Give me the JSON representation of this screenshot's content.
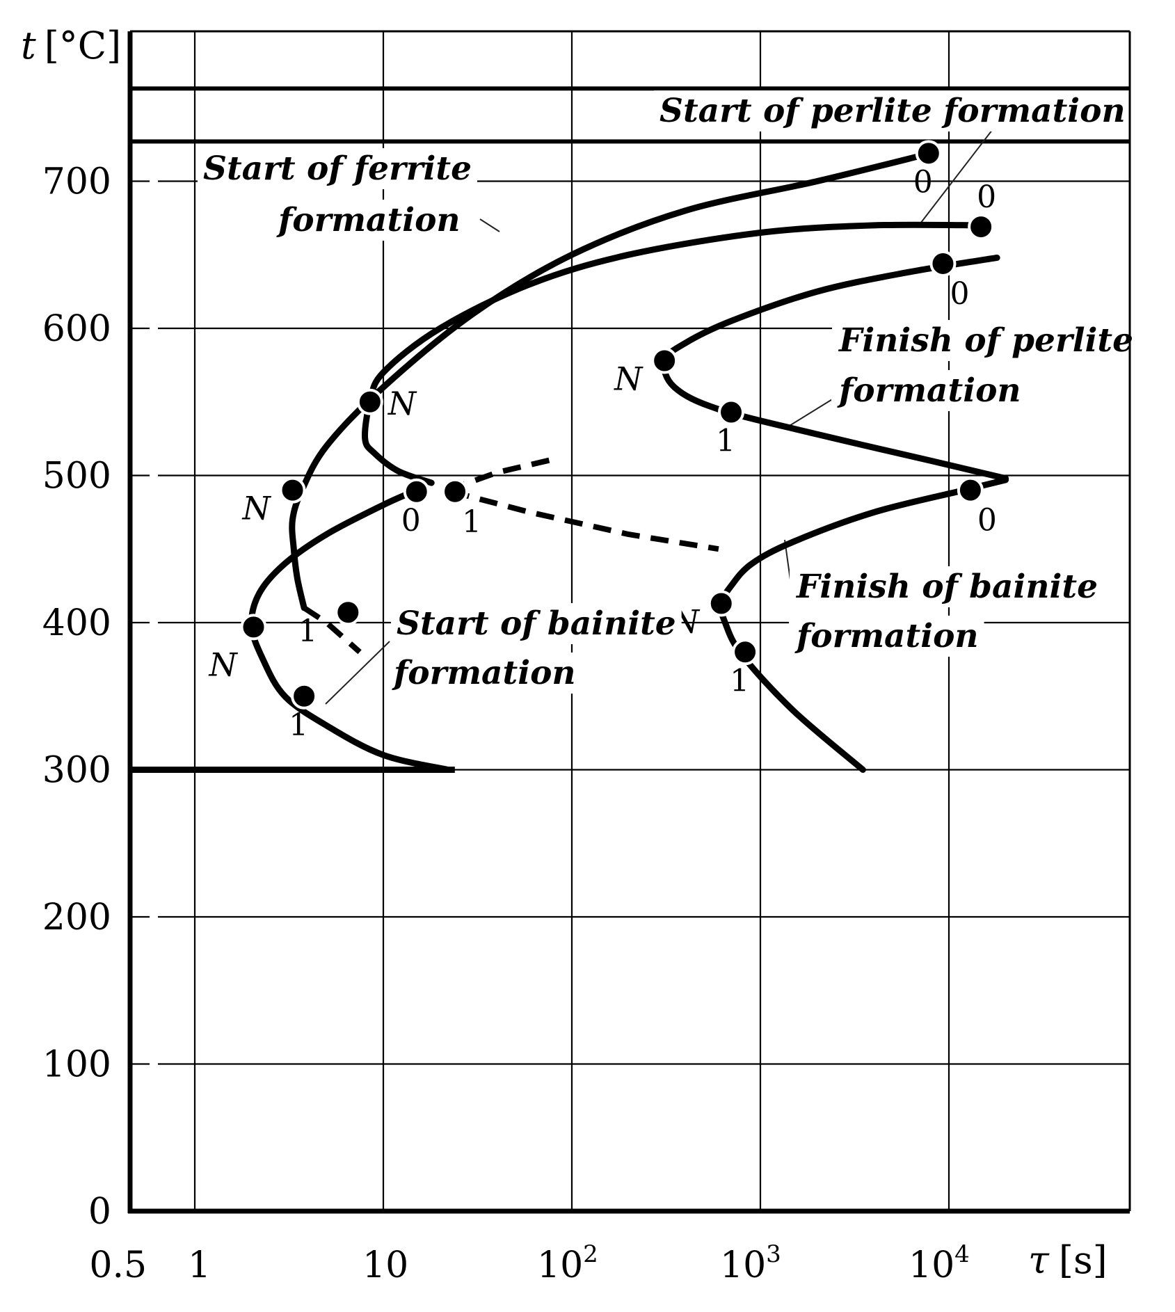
{
  "chart_data": {
    "type": "line",
    "title": "",
    "xlabel_sym": "τ",
    "xlabel_unit": "[s]",
    "ylabel_sym": "t",
    "ylabel_unit": "[°C]",
    "x_scale": "log",
    "xlim": [
      0.5,
      30000
    ],
    "ylim": [
      0,
      800
    ],
    "grid": true,
    "x_ticks": [
      {
        "value": 0.5,
        "label": "0.5"
      },
      {
        "value": 1,
        "label": "1"
      },
      {
        "value": 10,
        "label": "10"
      },
      {
        "value": 100,
        "label": "10",
        "sup": "2"
      },
      {
        "value": 1000,
        "label": "10",
        "sup": "3"
      },
      {
        "value": 10000,
        "label": "10",
        "sup": "4"
      }
    ],
    "y_ticks": [
      0,
      100,
      200,
      300,
      400,
      500,
      600,
      700
    ],
    "horizontal_lines": [
      {
        "y": 763
      },
      {
        "y": 727
      }
    ],
    "ms_line": {
      "y": 300,
      "x_end": 22
    },
    "series": [
      {
        "type": "solid",
        "x": [
          8000,
          2000,
          400,
          100,
          30,
          10,
          5,
          3.7,
          3.3,
          3.35,
          3.5,
          3.8
        ],
        "y": [
          719,
          700,
          680,
          650,
          610,
          560,
          520,
          490,
          470,
          450,
          430,
          410
        ]
      },
      {
        "type": "dashed",
        "x": [
          3.8,
          5,
          7.5
        ],
        "y": [
          410,
          400,
          380
        ]
      },
      {
        "type": "solid",
        "x": [
          15000,
          4000,
          1000,
          200,
          60,
          20,
          10,
          8.5,
          8,
          9,
          12,
          18
        ],
        "y": [
          670,
          670,
          665,
          650,
          630,
          600,
          570,
          550,
          525,
          515,
          503,
          495
        ]
      },
      {
        "type": "solid",
        "x": [
          18000,
          6000,
          2000,
          700,
          400,
          310,
          350,
          600,
          2000,
          8000,
          20000
        ],
        "y": [
          648,
          638,
          625,
          605,
          590,
          578,
          560,
          545,
          528,
          510,
          498
        ]
      },
      {
        "type": "solid",
        "x": [
          20000,
          12000,
          4000,
          1500,
          900,
          700,
          620,
          650,
          800,
          1500,
          3500
        ],
        "y": [
          497,
          490,
          475,
          455,
          440,
          425,
          413,
          400,
          378,
          340,
          300
        ]
      },
      {
        "type": "solid",
        "x": [
          15,
          10,
          5,
          3,
          2.2,
          2,
          2.3,
          3,
          5,
          10,
          22
        ],
        "y": [
          490,
          480,
          460,
          440,
          420,
          398,
          375,
          350,
          330,
          310,
          300
        ]
      },
      {
        "type": "dashed",
        "x": [
          22,
          40,
          80
        ],
        "y": [
          490,
          502,
          511
        ]
      },
      {
        "type": "dashed",
        "x": [
          23,
          60,
          200,
          600
        ],
        "y": [
          489,
          475,
          460,
          450
        ]
      }
    ],
    "points": [
      {
        "x": 7800,
        "y": 719,
        "label": "0",
        "pos": "below"
      },
      {
        "x": 14800,
        "y": 669,
        "label": "0",
        "pos": "above"
      },
      {
        "x": 9300,
        "y": 644,
        "label": "0",
        "pos": "below-right"
      },
      {
        "x": 8.5,
        "y": 550,
        "label": "N",
        "pos": "right"
      },
      {
        "x": 310,
        "y": 578,
        "label": "N",
        "pos": "left"
      },
      {
        "x": 700,
        "y": 543,
        "label": "1",
        "pos": "below"
      },
      {
        "x": 3.3,
        "y": 490,
        "label": "N",
        "pos": "left"
      },
      {
        "x": 15,
        "y": 489,
        "label": "0",
        "pos": "below"
      },
      {
        "x": 24,
        "y": 489,
        "label": "1",
        "pos": "below-right"
      },
      {
        "x": 13000,
        "y": 490,
        "label": "0",
        "pos": "below-right"
      },
      {
        "x": 620,
        "y": 413,
        "label": "N",
        "pos": "left"
      },
      {
        "x": 830,
        "y": 380,
        "label": "1",
        "pos": "below"
      },
      {
        "x": 6.5,
        "y": 407,
        "label": "1",
        "pos": "left"
      },
      {
        "x": 2.05,
        "y": 397,
        "label": "N",
        "pos": "below-left"
      },
      {
        "x": 3.8,
        "y": 350,
        "label": "1",
        "pos": "below"
      }
    ],
    "annotations": [
      {
        "id": "ferrite",
        "lines": [
          "Start of ferrite",
          "formation"
        ]
      },
      {
        "id": "perlite_start",
        "lines": [
          "Start of perlite formation"
        ]
      },
      {
        "id": "perlite_finish",
        "lines": [
          "Finish of perlite",
          "formation"
        ]
      },
      {
        "id": "bainite_finish",
        "lines": [
          "Finish of bainite",
          "formation"
        ]
      },
      {
        "id": "bainite_start",
        "lines": [
          "Start of bainite",
          "formation"
        ]
      }
    ]
  }
}
